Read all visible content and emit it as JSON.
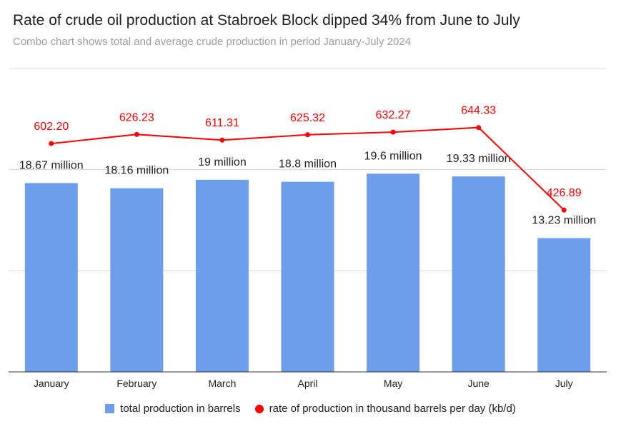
{
  "header": {
    "title": "Rate of crude oil production at Stabroek Block dipped 34% from June to July",
    "subtitle": "Combo chart shows total and average crude production in period January-July 2024"
  },
  "colors": {
    "bar": "#6d9eeb",
    "line": "#ff0000",
    "grid": "#d9d9d9",
    "axis": "#333333"
  },
  "chart_data": {
    "type": "bar",
    "categories": [
      "January",
      "February",
      "March",
      "April",
      "May",
      "June",
      "July"
    ],
    "series": [
      {
        "name": "total production in barrels",
        "type": "bar",
        "values": [
          18.67,
          18.16,
          19,
          18.8,
          19.6,
          19.33,
          13.23
        ],
        "labels": [
          "18.67 million",
          "18.16 million",
          "19 million",
          "18.8 million",
          "19.6 million",
          "19.33 million",
          "13.23 million"
        ]
      },
      {
        "name": "rate of production in thousand barrels per day (kb/d)",
        "type": "line",
        "values": [
          602.2,
          626.23,
          611.31,
          625.32,
          632.27,
          644.33,
          426.89
        ],
        "labels": [
          "602.20",
          "626.23",
          "611.31",
          "625.32",
          "632.27",
          "644.33",
          "426.89"
        ]
      }
    ],
    "legend_position": "bottom",
    "grid": true
  }
}
